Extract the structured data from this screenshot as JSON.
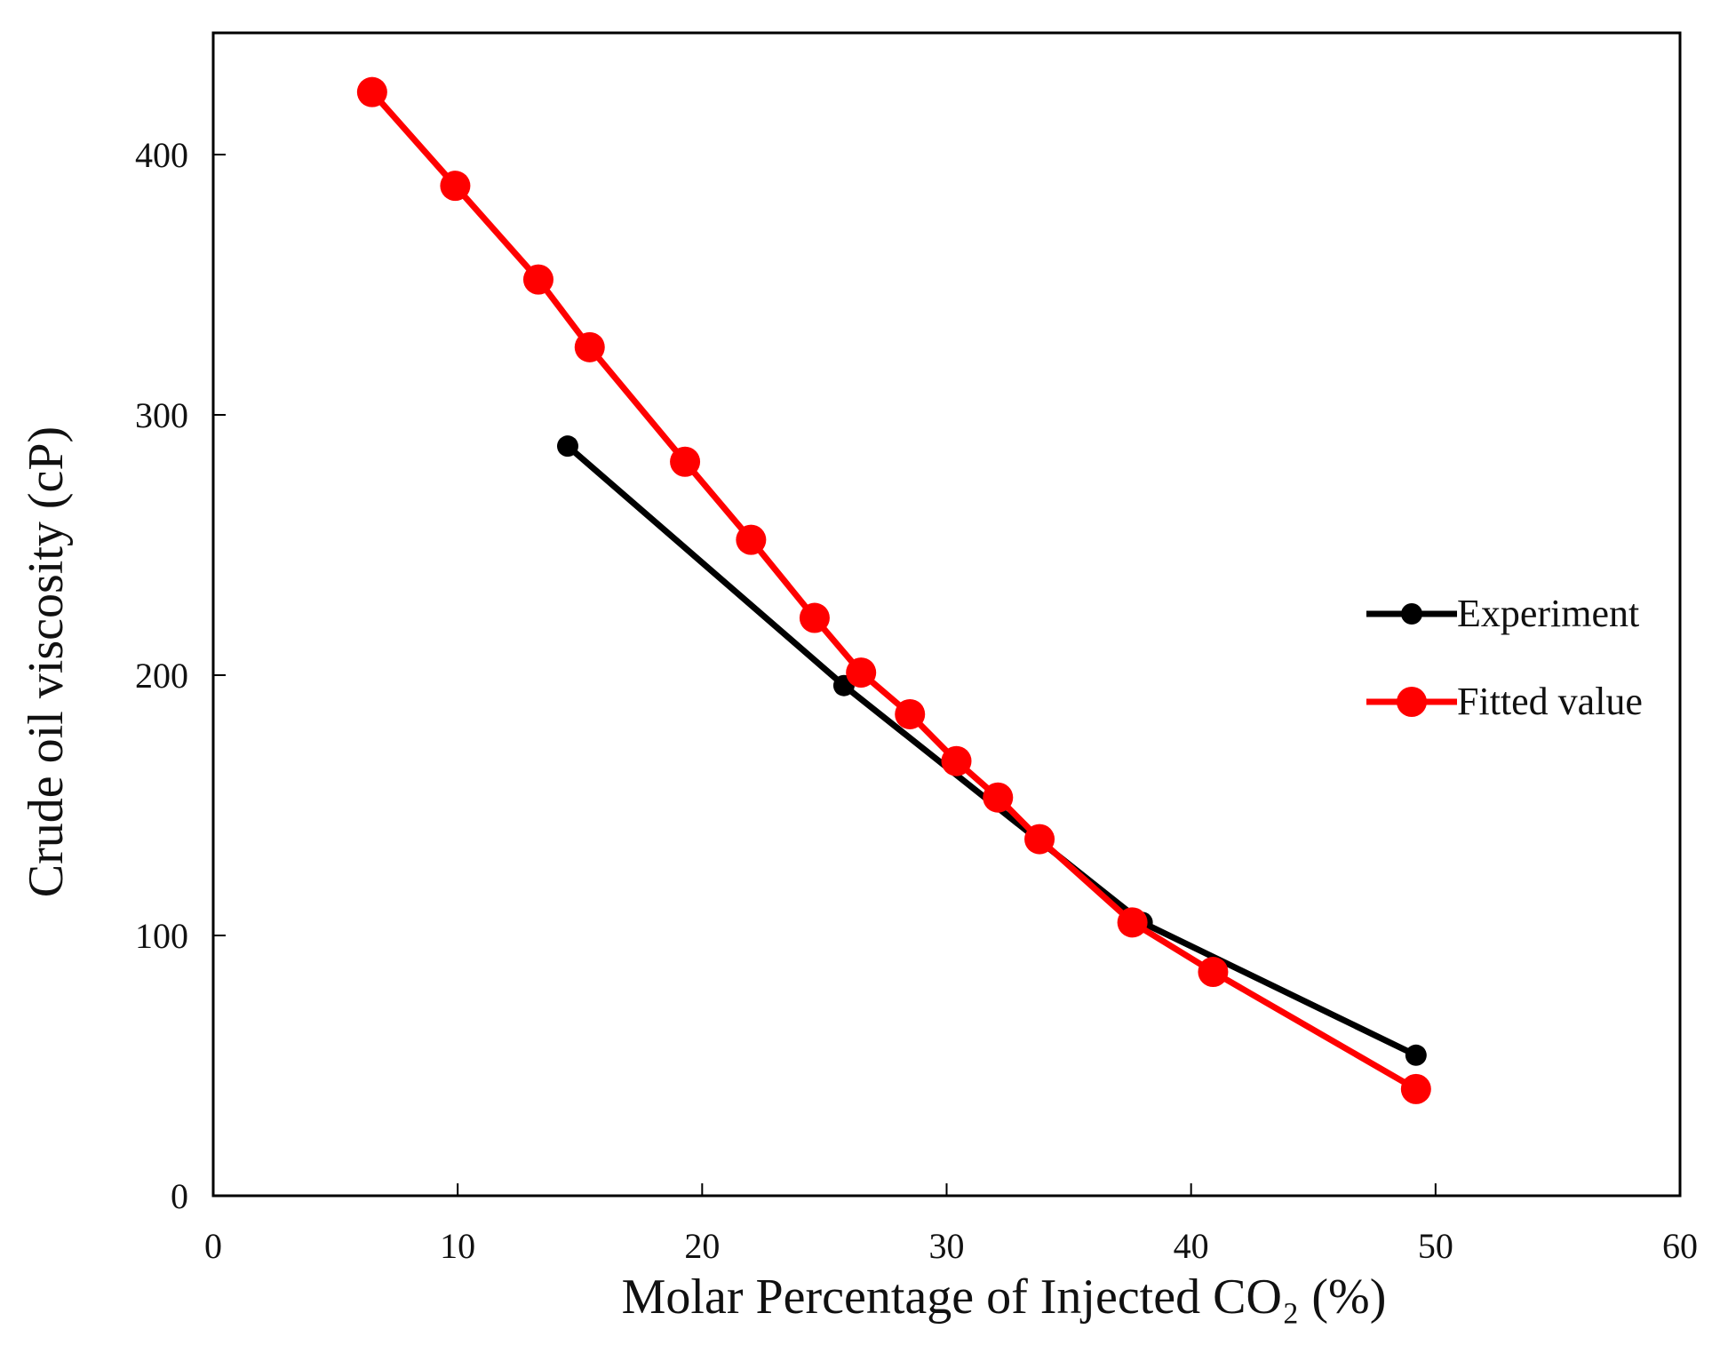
{
  "chart_data": {
    "type": "line",
    "title": "",
    "xlabel": "Molar Percentage of Injected CO₂ (%)",
    "ylabel": "Crude oil viscosity (cP)",
    "xlim": [
      0,
      60
    ],
    "ylim": [
      0,
      430
    ],
    "xticks": [
      0,
      10,
      20,
      30,
      40,
      50,
      60
    ],
    "yticks": [
      0,
      100,
      200,
      300,
      400
    ],
    "grid": false,
    "legend_position": "right",
    "series": [
      {
        "name": "Experiment",
        "color": "#000000",
        "x": [
          14.5,
          25.8,
          38.0,
          49.2
        ],
        "y": [
          288,
          196,
          105,
          54
        ]
      },
      {
        "name": "Fitted value",
        "color": "#ff0000",
        "x": [
          6.5,
          9.9,
          13.3,
          15.4,
          19.3,
          22.0,
          24.6,
          26.5,
          28.5,
          30.4,
          32.1,
          33.8,
          37.6,
          40.9,
          49.2
        ],
        "y": [
          424,
          388,
          352,
          326,
          282,
          252,
          222,
          201,
          185,
          167,
          153,
          137,
          105,
          86,
          41
        ]
      }
    ]
  }
}
